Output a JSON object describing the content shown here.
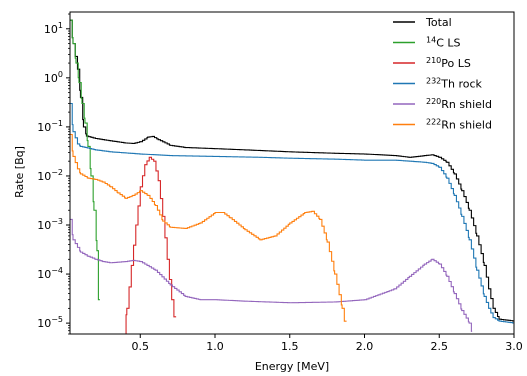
{
  "chart_data": {
    "type": "line",
    "xlabel": "Energy [MeV]",
    "ylabel": "Rate [Bq]",
    "xlim": [
      0.03,
      3.0
    ],
    "ylim": [
      6e-06,
      22
    ],
    "yscale": "log",
    "grid": false,
    "legend_position": "top-right",
    "x_ticks": [
      {
        "value": 0.5,
        "label": "0.5"
      },
      {
        "value": 1.0,
        "label": "1.0"
      },
      {
        "value": 1.5,
        "label": "1.5"
      },
      {
        "value": 2.0,
        "label": "2.0"
      },
      {
        "value": 2.5,
        "label": "2.5"
      },
      {
        "value": 3.0,
        "label": "3.0"
      }
    ],
    "y_ticks": [
      {
        "value": 10,
        "base": "10",
        "exp": "1"
      },
      {
        "value": 1,
        "base": "10",
        "exp": "0"
      },
      {
        "value": 0.1,
        "base": "10",
        "exp": "−1"
      },
      {
        "value": 0.01,
        "base": "10",
        "exp": "−2"
      },
      {
        "value": 0.001,
        "base": "10",
        "exp": "−3"
      },
      {
        "value": 0.0001,
        "base": "10",
        "exp": "−4"
      },
      {
        "value": 1e-05,
        "base": "10",
        "exp": "−5"
      }
    ],
    "series": [
      {
        "name": "Total",
        "legend": {
          "sup": "",
          "text": "Total"
        },
        "color": "#000000",
        "points": [
          [
            0.03,
            15
          ],
          [
            0.05,
            5
          ],
          [
            0.08,
            1.5
          ],
          [
            0.1,
            0.4
          ],
          [
            0.12,
            0.1
          ],
          [
            0.14,
            0.065
          ],
          [
            0.2,
            0.058
          ],
          [
            0.3,
            0.052
          ],
          [
            0.4,
            0.047
          ],
          [
            0.45,
            0.046
          ],
          [
            0.5,
            0.05
          ],
          [
            0.55,
            0.062
          ],
          [
            0.58,
            0.064
          ],
          [
            0.62,
            0.055
          ],
          [
            0.7,
            0.042
          ],
          [
            0.8,
            0.038
          ],
          [
            1.0,
            0.036
          ],
          [
            1.2,
            0.034
          ],
          [
            1.5,
            0.031
          ],
          [
            1.8,
            0.029
          ],
          [
            2.0,
            0.028
          ],
          [
            2.2,
            0.026
          ],
          [
            2.3,
            0.024
          ],
          [
            2.4,
            0.026
          ],
          [
            2.45,
            0.027
          ],
          [
            2.5,
            0.024
          ],
          [
            2.55,
            0.019
          ],
          [
            2.6,
            0.011
          ],
          [
            2.65,
            0.005
          ],
          [
            2.7,
            0.002
          ],
          [
            2.75,
            0.0006
          ],
          [
            2.8,
            0.00015
          ],
          [
            2.83,
            5e-05
          ],
          [
            2.86,
            2e-05
          ],
          [
            2.9,
            1.2e-05
          ],
          [
            3.0,
            1.1e-05
          ]
        ]
      },
      {
        "name": "14C LS",
        "legend": {
          "sup": "14",
          "text": "C LS"
        },
        "color": "#2ca02c",
        "points": [
          [
            0.03,
            15
          ],
          [
            0.05,
            5
          ],
          [
            0.07,
            2
          ],
          [
            0.09,
            0.8
          ],
          [
            0.11,
            0.3
          ],
          [
            0.13,
            0.12
          ],
          [
            0.15,
            0.04
          ],
          [
            0.17,
            0.01
          ],
          [
            0.19,
            0.002
          ],
          [
            0.21,
            0.0003
          ],
          [
            0.22,
            3e-05
          ],
          [
            0.23,
            6e-06
          ]
        ]
      },
      {
        "name": "210Po LS",
        "legend": {
          "sup": "210",
          "text": "Po LS"
        },
        "color": "#d62728",
        "points": [
          [
            0.39,
            6e-06
          ],
          [
            0.41,
            2e-05
          ],
          [
            0.44,
            0.00015
          ],
          [
            0.47,
            0.001
          ],
          [
            0.5,
            0.006
          ],
          [
            0.53,
            0.017
          ],
          [
            0.56,
            0.024
          ],
          [
            0.59,
            0.02
          ],
          [
            0.62,
            0.008
          ],
          [
            0.65,
            0.0015
          ],
          [
            0.68,
            0.0002
          ],
          [
            0.71,
            3e-05
          ],
          [
            0.74,
            6e-06
          ]
        ]
      },
      {
        "name": "232Th rock",
        "legend": {
          "sup": "232",
          "text": "Th rock"
        },
        "color": "#1f77b4",
        "points": [
          [
            0.03,
            0.3
          ],
          [
            0.05,
            0.08
          ],
          [
            0.08,
            0.045
          ],
          [
            0.1,
            0.04
          ],
          [
            0.2,
            0.034
          ],
          [
            0.3,
            0.031
          ],
          [
            0.5,
            0.028
          ],
          [
            0.7,
            0.026
          ],
          [
            1.0,
            0.025
          ],
          [
            1.3,
            0.024
          ],
          [
            1.5,
            0.023
          ],
          [
            1.8,
            0.022
          ],
          [
            2.0,
            0.021
          ],
          [
            2.2,
            0.021
          ],
          [
            2.3,
            0.02
          ],
          [
            2.4,
            0.019
          ],
          [
            2.45,
            0.018
          ],
          [
            2.5,
            0.015
          ],
          [
            2.55,
            0.009
          ],
          [
            2.6,
            0.004
          ],
          [
            2.65,
            0.0015
          ],
          [
            2.7,
            0.0005
          ],
          [
            2.75,
            0.00012
          ],
          [
            2.8,
            3.5e-05
          ],
          [
            2.83,
            2e-05
          ],
          [
            2.86,
            1.3e-05
          ],
          [
            2.9,
            1.1e-05
          ],
          [
            3.0,
            1e-05
          ]
        ]
      },
      {
        "name": "220Rn shield",
        "legend": {
          "sup": "220",
          "text": "Rn shield"
        },
        "color": "#9467bd",
        "points": [
          [
            0.03,
            0.0013
          ],
          [
            0.05,
            0.0005
          ],
          [
            0.08,
            0.00035
          ],
          [
            0.1,
            0.00028
          ],
          [
            0.15,
            0.00023
          ],
          [
            0.2,
            0.0002
          ],
          [
            0.25,
            0.00018
          ],
          [
            0.3,
            0.00017
          ],
          [
            0.4,
            0.00018
          ],
          [
            0.45,
            0.00019
          ],
          [
            0.5,
            0.00018
          ],
          [
            0.6,
            0.00012
          ],
          [
            0.7,
            6e-05
          ],
          [
            0.8,
            3.5e-05
          ],
          [
            0.9,
            3e-05
          ],
          [
            1.0,
            3e-05
          ],
          [
            1.2,
            2.8e-05
          ],
          [
            1.5,
            2.6e-05
          ],
          [
            1.8,
            2.7e-05
          ],
          [
            2.0,
            3e-05
          ],
          [
            2.2,
            5e-05
          ],
          [
            2.3,
            9e-05
          ],
          [
            2.4,
            0.00016
          ],
          [
            2.45,
            0.0002
          ],
          [
            2.5,
            0.00016
          ],
          [
            2.55,
            9e-05
          ],
          [
            2.6,
            4e-05
          ],
          [
            2.65,
            1.8e-05
          ],
          [
            2.7,
            1e-05
          ],
          [
            2.72,
            6e-06
          ]
        ]
      },
      {
        "name": "222Rn shield",
        "legend": {
          "sup": "222",
          "text": "Rn shield"
        },
        "color": "#ff7f0e",
        "points": [
          [
            0.03,
            0.07
          ],
          [
            0.05,
            0.025
          ],
          [
            0.08,
            0.014
          ],
          [
            0.1,
            0.011
          ],
          [
            0.15,
            0.009
          ],
          [
            0.2,
            0.0085
          ],
          [
            0.25,
            0.0075
          ],
          [
            0.3,
            0.006
          ],
          [
            0.35,
            0.0045
          ],
          [
            0.4,
            0.0035
          ],
          [
            0.45,
            0.004
          ],
          [
            0.5,
            0.005
          ],
          [
            0.55,
            0.004
          ],
          [
            0.6,
            0.0025
          ],
          [
            0.65,
            0.0012
          ],
          [
            0.7,
            0.0009
          ],
          [
            0.8,
            0.00085
          ],
          [
            0.9,
            0.0011
          ],
          [
            1.0,
            0.0018
          ],
          [
            1.05,
            0.0018
          ],
          [
            1.1,
            0.0014
          ],
          [
            1.2,
            0.0008
          ],
          [
            1.3,
            0.0005
          ],
          [
            1.4,
            0.0006
          ],
          [
            1.5,
            0.0011
          ],
          [
            1.6,
            0.0018
          ],
          [
            1.65,
            0.0019
          ],
          [
            1.7,
            0.0013
          ],
          [
            1.75,
            0.00045
          ],
          [
            1.8,
            0.0001
          ],
          [
            1.85,
            2e-05
          ],
          [
            1.88,
            6e-06
          ]
        ]
      }
    ]
  }
}
